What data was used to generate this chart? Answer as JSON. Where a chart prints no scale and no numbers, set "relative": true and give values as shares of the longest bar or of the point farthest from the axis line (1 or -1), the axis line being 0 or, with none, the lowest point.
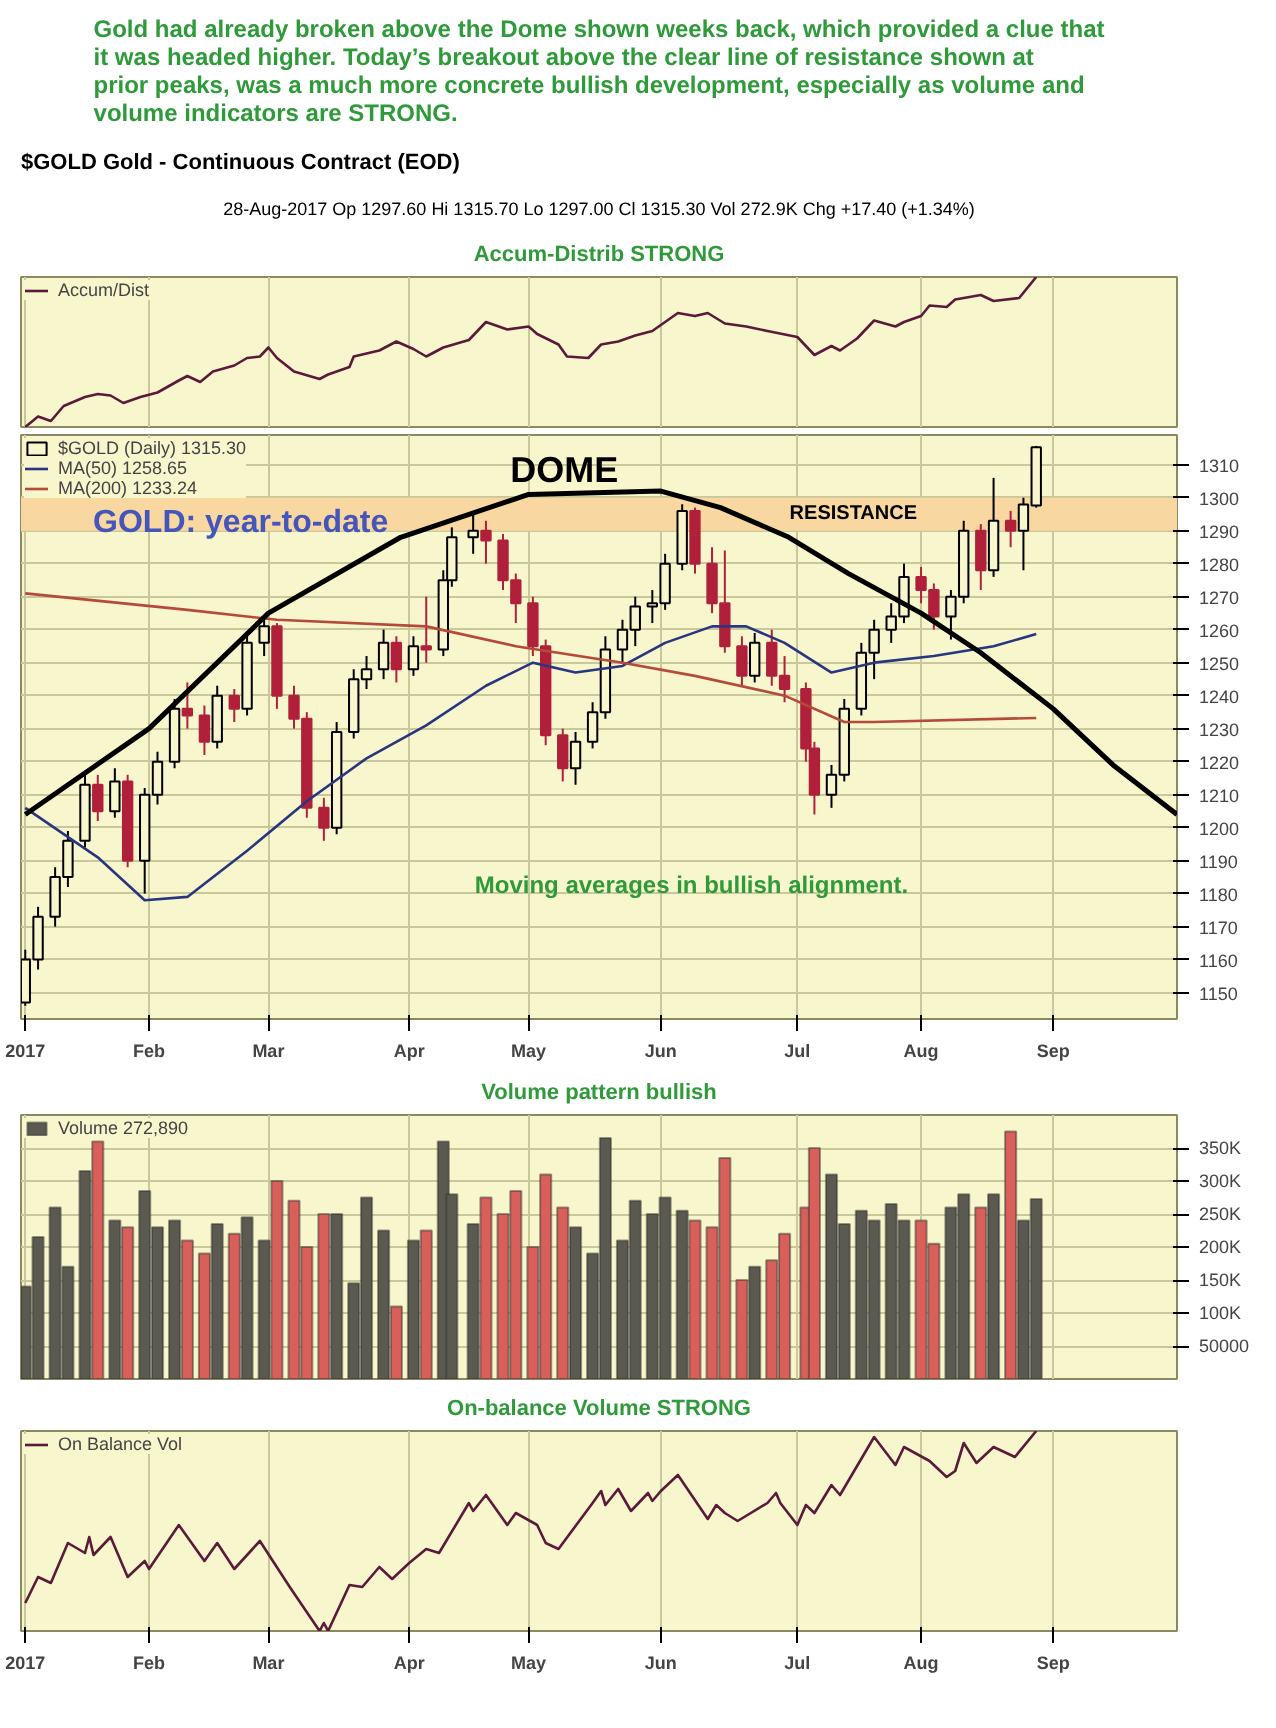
{
  "chart_data": [
    {
      "type": "line",
      "relative": true,
      "title": "Gold had already broken above the Dome shown weeks back, which provided a clue that it was headed higher. Today’s breakout above the clear line of resistance shown at prior peaks, was a much more concrete bullish development, especially as volume and volume indicators are STRONG.",
      "subtitle": "$GOLD Gold - Continuous Contract (EOD)",
      "annotations": [
        "28-Aug-2017 Op 1297.60 Hi 1315.70 Lo 1297.00 Cl 1315.30 Vol 272.9K Chg +17.40 (+1.34%)",
        "Accum-Distrib STRONG"
      ],
      "xlim": [
        "2017-01-02",
        "2017-09-30"
      ],
      "xticks": [
        {
          "value": "2017-01-03",
          "label": "2017"
        },
        {
          "value": "2017-02-01",
          "label": "Feb"
        },
        {
          "value": "2017-03-01",
          "label": "Mar"
        },
        {
          "value": "2017-04-03",
          "label": "Apr"
        },
        {
          "value": "2017-05-01",
          "label": "May"
        },
        {
          "value": "2017-06-01",
          "label": "Jun"
        },
        {
          "value": "2017-07-03",
          "label": "Jul"
        },
        {
          "value": "2017-08-01",
          "label": "Aug"
        },
        {
          "value": "2017-09-01",
          "label": "Sep"
        }
      ],
      "tick_labels": false,
      "grid": "x",
      "legend": "top left",
      "series": [
        {
          "name": "Accum/Dist",
          "color": "#5b1a3a",
          "x": [
            "2017-01-03",
            "2017-01-06",
            "2017-01-09",
            "2017-01-12",
            "2017-01-17",
            "2017-01-20",
            "2017-01-23",
            "2017-01-26",
            "2017-01-30",
            "2017-02-03",
            "2017-02-08",
            "2017-02-10",
            "2017-02-13",
            "2017-02-16",
            "2017-02-21",
            "2017-02-24",
            "2017-02-27",
            "2017-03-01",
            "2017-03-03",
            "2017-03-07",
            "2017-03-13",
            "2017-03-15",
            "2017-03-20",
            "2017-03-21",
            "2017-03-27",
            "2017-03-29",
            "2017-03-31",
            "2017-04-04",
            "2017-04-07",
            "2017-04-11",
            "2017-04-17",
            "2017-04-21",
            "2017-04-26",
            "2017-05-01",
            "2017-05-03",
            "2017-05-08",
            "2017-05-10",
            "2017-05-15",
            "2017-05-18",
            "2017-05-22",
            "2017-05-26",
            "2017-05-30",
            "2017-06-05",
            "2017-06-09",
            "2017-06-12",
            "2017-06-16",
            "2017-06-21",
            "2017-06-26",
            "2017-07-03",
            "2017-07-07",
            "2017-07-11",
            "2017-07-13",
            "2017-07-17",
            "2017-07-21",
            "2017-07-26",
            "2017-07-28",
            "2017-08-01",
            "2017-08-03",
            "2017-08-07",
            "2017-08-09",
            "2017-08-15",
            "2017-08-18",
            "2017-08-24",
            "2017-08-28"
          ],
          "values": [
            0,
            0.07,
            0.04,
            0.14,
            0.2,
            0.22,
            0.21,
            0.16,
            0.2,
            0.23,
            0.31,
            0.34,
            0.3,
            0.37,
            0.41,
            0.46,
            0.47,
            0.53,
            0.46,
            0.37,
            0.32,
            0.35,
            0.4,
            0.47,
            0.51,
            0.54,
            0.57,
            0.52,
            0.47,
            0.53,
            0.58,
            0.7,
            0.65,
            0.67,
            0.62,
            0.55,
            0.47,
            0.46,
            0.55,
            0.57,
            0.61,
            0.64,
            0.76,
            0.74,
            0.76,
            0.69,
            0.67,
            0.64,
            0.6,
            0.48,
            0.54,
            0.51,
            0.59,
            0.71,
            0.67,
            0.7,
            0.74,
            0.81,
            0.8,
            0.85,
            0.88,
            0.84,
            0.86,
            1
          ]
        }
      ]
    },
    {
      "type": "candlestick",
      "ylim": [
        1142,
        1319
      ],
      "yticks": [
        1150,
        1160,
        1170,
        1180,
        1190,
        1200,
        1210,
        1220,
        1230,
        1240,
        1250,
        1260,
        1270,
        1280,
        1290,
        1300,
        1310
      ],
      "xlim": [
        "2017-01-02",
        "2017-09-30"
      ],
      "xticks": [
        {
          "value": "2017-01-03",
          "label": "2017"
        },
        {
          "value": "2017-02-01",
          "label": "Feb"
        },
        {
          "value": "2017-03-01",
          "label": "Mar"
        },
        {
          "value": "2017-04-03",
          "label": "Apr"
        },
        {
          "value": "2017-05-01",
          "label": "May"
        },
        {
          "value": "2017-06-01",
          "label": "Jun"
        },
        {
          "value": "2017-07-03",
          "label": "Jul"
        },
        {
          "value": "2017-08-01",
          "label": "Aug"
        },
        {
          "value": "2017-09-01",
          "label": "Sep"
        }
      ],
      "grid": true,
      "legend": "top left",
      "annotations": [
        "DOME",
        "GOLD: year-to-date",
        "Moving averages in bullish alignment."
      ],
      "bands": [
        {
          "axis": "y",
          "from": 1290,
          "to": 1300,
          "label": "RESISTANCE",
          "color": "#f9d7a0"
        }
      ],
      "x": [
        "2017-01-03",
        "2017-01-06",
        "2017-01-10",
        "2017-01-13",
        "2017-01-17",
        "2017-01-20",
        "2017-01-24",
        "2017-01-27",
        "2017-01-31",
        "2017-02-03",
        "2017-02-07",
        "2017-02-10",
        "2017-02-14",
        "2017-02-17",
        "2017-02-21",
        "2017-02-24",
        "2017-02-28",
        "2017-03-03",
        "2017-03-07",
        "2017-03-10",
        "2017-03-14",
        "2017-03-17",
        "2017-03-21",
        "2017-03-24",
        "2017-03-28",
        "2017-03-31",
        "2017-04-04",
        "2017-04-07",
        "2017-04-11",
        "2017-04-13",
        "2017-04-18",
        "2017-04-21",
        "2017-04-25",
        "2017-04-28",
        "2017-05-02",
        "2017-05-05",
        "2017-05-09",
        "2017-05-12",
        "2017-05-16",
        "2017-05-19",
        "2017-05-23",
        "2017-05-26",
        "2017-05-30",
        "2017-06-02",
        "2017-06-06",
        "2017-06-09",
        "2017-06-13",
        "2017-06-16",
        "2017-06-20",
        "2017-06-23",
        "2017-06-27",
        "2017-06-30",
        "2017-07-05",
        "2017-07-07",
        "2017-07-11",
        "2017-07-14",
        "2017-07-18",
        "2017-07-21",
        "2017-07-25",
        "2017-07-28",
        "2017-08-01",
        "2017-08-04",
        "2017-08-08",
        "2017-08-11",
        "2017-08-15",
        "2017-08-18",
        "2017-08-22",
        "2017-08-25",
        "2017-08-28"
      ],
      "series": [
        {
          "name": "$GOLD (Daily) 1315.30",
          "ohlc": [
            [
              1147,
              1163,
              1146,
              1160
            ],
            [
              1160,
              1176,
              1157,
              1173
            ],
            [
              1173,
              1188,
              1170,
              1185
            ],
            [
              1185,
              1199,
              1182,
              1196
            ],
            [
              1196,
              1217,
              1194,
              1213
            ],
            [
              1213,
              1216,
              1202,
              1205
            ],
            [
              1205,
              1218,
              1203,
              1214
            ],
            [
              1214,
              1216,
              1188,
              1190
            ],
            [
              1190,
              1212,
              1180,
              1210
            ],
            [
              1210,
              1223,
              1207,
              1220
            ],
            [
              1220,
              1239,
              1218,
              1236
            ],
            [
              1236,
              1244,
              1230,
              1234
            ],
            [
              1234,
              1237,
              1222,
              1226
            ],
            [
              1226,
              1243,
              1224,
              1240
            ],
            [
              1240,
              1242,
              1232,
              1236
            ],
            [
              1236,
              1259,
              1234,
              1256
            ],
            [
              1256,
              1264,
              1252,
              1261
            ],
            [
              1261,
              1262,
              1236,
              1240
            ],
            [
              1240,
              1243,
              1230,
              1233
            ],
            [
              1233,
              1235,
              1203,
              1206
            ],
            [
              1206,
              1209,
              1196,
              1200
            ],
            [
              1200,
              1232,
              1198,
              1229
            ],
            [
              1229,
              1248,
              1227,
              1245
            ],
            [
              1245,
              1252,
              1242,
              1248
            ],
            [
              1248,
              1260,
              1245,
              1256
            ],
            [
              1256,
              1258,
              1244,
              1248
            ],
            [
              1248,
              1258,
              1246,
              1255
            ],
            [
              1255,
              1270,
              1250,
              1254
            ],
            [
              1254,
              1278,
              1252,
              1275
            ],
            [
              1275,
              1291,
              1273,
              1288
            ],
            [
              1288,
              1295,
              1283,
              1290
            ],
            [
              1290,
              1293,
              1280,
              1287
            ],
            [
              1287,
              1289,
              1272,
              1275
            ],
            [
              1275,
              1277,
              1262,
              1268
            ],
            [
              1268,
              1270,
              1252,
              1255
            ],
            [
              1255,
              1257,
              1225,
              1228
            ],
            [
              1228,
              1230,
              1214,
              1218
            ],
            [
              1218,
              1229,
              1213,
              1226
            ],
            [
              1226,
              1238,
              1224,
              1235
            ],
            [
              1235,
              1258,
              1233,
              1254
            ],
            [
              1254,
              1263,
              1250,
              1260
            ],
            [
              1260,
              1270,
              1255,
              1267
            ],
            [
              1267,
              1272,
              1262,
              1268
            ],
            [
              1268,
              1283,
              1266,
              1280
            ],
            [
              1280,
              1298,
              1278,
              1296
            ],
            [
              1296,
              1297,
              1277,
              1280
            ],
            [
              1280,
              1285,
              1265,
              1268
            ],
            [
              1268,
              1284,
              1253,
              1255
            ],
            [
              1255,
              1258,
              1243,
              1246
            ],
            [
              1246,
              1259,
              1244,
              1256
            ],
            [
              1256,
              1260,
              1243,
              1246
            ],
            [
              1246,
              1252,
              1238,
              1242
            ],
            [
              1242,
              1244,
              1220,
              1224
            ],
            [
              1224,
              1226,
              1204,
              1210
            ],
            [
              1210,
              1219,
              1206,
              1216
            ],
            [
              1216,
              1239,
              1214,
              1236
            ],
            [
              1236,
              1256,
              1234,
              1253
            ],
            [
              1253,
              1263,
              1245,
              1260
            ],
            [
              1260,
              1268,
              1256,
              1264
            ],
            [
              1264,
              1280,
              1262,
              1276
            ],
            [
              1276,
              1279,
              1268,
              1272
            ],
            [
              1272,
              1274,
              1260,
              1264
            ],
            [
              1264,
              1272,
              1257,
              1270
            ],
            [
              1270,
              1293,
              1268,
              1290
            ],
            [
              1290,
              1292,
              1272,
              1278
            ],
            [
              1278,
              1306,
              1276,
              1293
            ],
            [
              1293,
              1296,
              1285,
              1290
            ],
            [
              1290,
              1300,
              1278,
              1297.9
            ],
            [
              1297.6,
              1315.7,
              1297,
              1315.3
            ]
          ],
          "colors": [
            "#000000",
            "#000000",
            "#000000",
            "#000000",
            "#000000",
            "#b0203a",
            "#000000",
            "#b0203a",
            "#000000",
            "#000000",
            "#000000",
            "#b0203a",
            "#b0203a",
            "#000000",
            "#b0203a",
            "#000000",
            "#000000",
            "#b0203a",
            "#b0203a",
            "#b0203a",
            "#b0203a",
            "#000000",
            "#000000",
            "#000000",
            "#000000",
            "#b0203a",
            "#000000",
            "#b0203a",
            "#000000",
            "#000000",
            "#000000",
            "#b0203a",
            "#b0203a",
            "#b0203a",
            "#b0203a",
            "#b0203a",
            "#b0203a",
            "#000000",
            "#000000",
            "#000000",
            "#000000",
            "#000000",
            "#000000",
            "#000000",
            "#000000",
            "#b0203a",
            "#b0203a",
            "#b0203a",
            "#b0203a",
            "#000000",
            "#b0203a",
            "#b0203a",
            "#b0203a",
            "#b0203a",
            "#000000",
            "#000000",
            "#000000",
            "#000000",
            "#000000",
            "#000000",
            "#b0203a",
            "#b0203a",
            "#000000",
            "#000000",
            "#b0203a",
            "#000000",
            "#b0203a",
            "#000000",
            "#000000"
          ]
        },
        {
          "name": "MA(50) 1258.65",
          "type": "line",
          "color": "#2a3580",
          "x": [
            "2017-01-03",
            "2017-01-20",
            "2017-01-31",
            "2017-02-10",
            "2017-02-24",
            "2017-03-10",
            "2017-03-24",
            "2017-04-07",
            "2017-04-21",
            "2017-05-02",
            "2017-05-12",
            "2017-05-23",
            "2017-06-02",
            "2017-06-13",
            "2017-06-21",
            "2017-06-30",
            "2017-07-11",
            "2017-07-21",
            "2017-08-04",
            "2017-08-18",
            "2017-08-28"
          ],
          "values": [
            1206,
            1191,
            1178,
            1179,
            1193,
            1208,
            1221,
            1231,
            1243,
            1250,
            1247,
            1249,
            1256,
            1261,
            1261,
            1256,
            1247,
            1250,
            1252,
            1255,
            1258.65
          ]
        },
        {
          "name": "MA(200) 1233.24",
          "type": "line",
          "color": "#b5493a",
          "x": [
            "2017-01-03",
            "2017-02-10",
            "2017-03-03",
            "2017-04-07",
            "2017-04-28",
            "2017-05-23",
            "2017-06-09",
            "2017-06-30",
            "2017-07-14",
            "2017-07-21",
            "2017-08-28"
          ],
          "values": [
            1271,
            1266,
            1263,
            1261,
            1255,
            1250,
            1246,
            1240,
            1232,
            1232,
            1233.24
          ]
        },
        {
          "type": "line",
          "color": "#000000",
          "x": [
            "2017-01-03",
            "2017-02-01",
            "2017-03-01",
            "2017-04-01",
            "2017-05-01",
            "2017-06-01",
            "2017-06-15",
            "2017-07-01",
            "2017-07-15",
            "2017-08-01",
            "2017-08-15",
            "2017-09-01",
            "2017-09-15",
            "2017-09-30"
          ],
          "values": [
            1204,
            1230,
            1265,
            1288,
            1301,
            1302,
            1297,
            1288,
            1277,
            1265,
            1253,
            1236,
            1219,
            1204
          ]
        }
      ]
    },
    {
      "type": "bar",
      "ylim": [
        0,
        400000
      ],
      "yticks": [
        50000,
        {
          "value": 100000,
          "label": "100K"
        },
        {
          "value": 150000,
          "label": "150K"
        },
        {
          "value": 200000,
          "label": "200K"
        },
        {
          "value": 250000,
          "label": "250K"
        },
        {
          "value": 300000,
          "label": "300K"
        },
        {
          "value": 350000,
          "label": "350K"
        }
      ],
      "xlim": [
        "2017-01-02",
        "2017-09-30"
      ],
      "xticks": [
        {
          "value": "2017-01-03",
          "label": "2017"
        },
        {
          "value": "2017-02-01",
          "label": "Feb"
        },
        {
          "value": "2017-03-01",
          "label": "Mar"
        },
        {
          "value": "2017-04-03",
          "label": "Apr"
        },
        {
          "value": "2017-05-01",
          "label": "May"
        },
        {
          "value": "2017-06-01",
          "label": "Jun"
        },
        {
          "value": "2017-07-03",
          "label": "Jul"
        },
        {
          "value": "2017-08-01",
          "label": "Aug"
        },
        {
          "value": "2017-09-01",
          "label": "Sep"
        }
      ],
      "tick_labels": "y",
      "grid": true,
      "legend": "top left",
      "annotations": [
        "Volume pattern bullish"
      ],
      "x": [
        "2017-01-03",
        "2017-01-06",
        "2017-01-10",
        "2017-01-13",
        "2017-01-17",
        "2017-01-20",
        "2017-01-24",
        "2017-01-27",
        "2017-01-31",
        "2017-02-03",
        "2017-02-07",
        "2017-02-10",
        "2017-02-14",
        "2017-02-17",
        "2017-02-21",
        "2017-02-24",
        "2017-02-28",
        "2017-03-03",
        "2017-03-07",
        "2017-03-10",
        "2017-03-14",
        "2017-03-17",
        "2017-03-21",
        "2017-03-24",
        "2017-03-28",
        "2017-03-31",
        "2017-04-04",
        "2017-04-07",
        "2017-04-11",
        "2017-04-13",
        "2017-04-18",
        "2017-04-21",
        "2017-04-25",
        "2017-04-28",
        "2017-05-02",
        "2017-05-05",
        "2017-05-09",
        "2017-05-12",
        "2017-05-16",
        "2017-05-19",
        "2017-05-23",
        "2017-05-26",
        "2017-05-30",
        "2017-06-02",
        "2017-06-06",
        "2017-06-09",
        "2017-06-13",
        "2017-06-16",
        "2017-06-20",
        "2017-06-23",
        "2017-06-27",
        "2017-06-30",
        "2017-07-05",
        "2017-07-07",
        "2017-07-11",
        "2017-07-14",
        "2017-07-18",
        "2017-07-21",
        "2017-07-25",
        "2017-07-28",
        "2017-08-01",
        "2017-08-04",
        "2017-08-08",
        "2017-08-11",
        "2017-08-15",
        "2017-08-18",
        "2017-08-22",
        "2017-08-25",
        "2017-08-28"
      ],
      "series": [
        {
          "name": "Volume 272,890",
          "values": [
            140000,
            215000,
            260000,
            170000,
            315000,
            360000,
            240000,
            230000,
            285000,
            230000,
            240000,
            210000,
            190000,
            235000,
            220000,
            245000,
            210000,
            300000,
            270000,
            200000,
            250000,
            250000,
            145000,
            275000,
            225000,
            110000,
            210000,
            225000,
            360000,
            280000,
            235000,
            275000,
            250000,
            285000,
            200000,
            310000,
            260000,
            230000,
            190000,
            365000,
            210000,
            270000,
            250000,
            275000,
            255000,
            240000,
            230000,
            335000,
            150000,
            170000,
            180000,
            220000,
            260000,
            350000,
            310000,
            235000,
            255000,
            240000,
            265000,
            240000,
            240000,
            205000,
            260000,
            280000,
            260000,
            280000,
            375000,
            240000,
            272890
          ],
          "colors": [
            "#5a5a50",
            "#5a5a50",
            "#5a5a50",
            "#5a5a50",
            "#5a5a50",
            "#d9605a",
            "#5a5a50",
            "#d9605a",
            "#5a5a50",
            "#5a5a50",
            "#5a5a50",
            "#d9605a",
            "#d9605a",
            "#5a5a50",
            "#d9605a",
            "#5a5a50",
            "#5a5a50",
            "#d9605a",
            "#d9605a",
            "#d9605a",
            "#d9605a",
            "#5a5a50",
            "#5a5a50",
            "#5a5a50",
            "#5a5a50",
            "#d9605a",
            "#5a5a50",
            "#d9605a",
            "#5a5a50",
            "#5a5a50",
            "#5a5a50",
            "#d9605a",
            "#d9605a",
            "#d9605a",
            "#d9605a",
            "#d9605a",
            "#d9605a",
            "#5a5a50",
            "#5a5a50",
            "#5a5a50",
            "#5a5a50",
            "#5a5a50",
            "#5a5a50",
            "#5a5a50",
            "#5a5a50",
            "#d9605a",
            "#d9605a",
            "#d9605a",
            "#d9605a",
            "#5a5a50",
            "#d9605a",
            "#d9605a",
            "#d9605a",
            "#d9605a",
            "#5a5a50",
            "#5a5a50",
            "#5a5a50",
            "#5a5a50",
            "#5a5a50",
            "#5a5a50",
            "#d9605a",
            "#d9605a",
            "#5a5a50",
            "#5a5a50",
            "#d9605a",
            "#5a5a50",
            "#d9605a",
            "#5a5a50",
            "#5a5a50"
          ]
        }
      ]
    },
    {
      "type": "line",
      "relative": true,
      "xlim": [
        "2017-01-02",
        "2017-09-30"
      ],
      "xticks": [
        {
          "value": "2017-01-03",
          "label": "2017"
        },
        {
          "value": "2017-02-01",
          "label": "Feb"
        },
        {
          "value": "2017-03-01",
          "label": "Mar"
        },
        {
          "value": "2017-04-03",
          "label": "Apr"
        },
        {
          "value": "2017-05-01",
          "label": "May"
        },
        {
          "value": "2017-06-01",
          "label": "Jun"
        },
        {
          "value": "2017-07-03",
          "label": "Jul"
        },
        {
          "value": "2017-08-01",
          "label": "Aug"
        },
        {
          "value": "2017-09-01",
          "label": "Sep"
        }
      ],
      "tick_labels": "x",
      "grid": "x",
      "legend": "top left",
      "annotations": [
        "On-balance Volume STRONG"
      ],
      "series": [
        {
          "name": "On Balance Vol",
          "color": "#5b1a3a",
          "x": [
            "2017-01-03",
            "2017-01-06",
            "2017-01-09",
            "2017-01-13",
            "2017-01-17",
            "2017-01-18",
            "2017-01-19",
            "2017-01-23",
            "2017-01-27",
            "2017-01-31",
            "2017-02-01",
            "2017-02-08",
            "2017-02-14",
            "2017-02-17",
            "2017-02-21",
            "2017-02-27",
            "2017-03-06",
            "2017-03-13",
            "2017-03-14",
            "2017-03-15",
            "2017-03-20",
            "2017-03-23",
            "2017-03-27",
            "2017-03-30",
            "2017-04-03",
            "2017-04-07",
            "2017-04-10",
            "2017-04-17",
            "2017-04-18",
            "2017-04-21",
            "2017-04-26",
            "2017-04-28",
            "2017-05-03",
            "2017-05-05",
            "2017-05-08",
            "2017-05-16",
            "2017-05-18",
            "2017-05-19",
            "2017-05-22",
            "2017-05-25",
            "2017-05-29",
            "2017-05-30",
            "2017-06-01",
            "2017-06-05",
            "2017-06-12",
            "2017-06-14",
            "2017-06-16",
            "2017-06-19",
            "2017-06-26",
            "2017-06-28",
            "2017-06-29",
            "2017-07-03",
            "2017-07-05",
            "2017-07-07",
            "2017-07-11",
            "2017-07-13",
            "2017-07-21",
            "2017-07-26",
            "2017-07-28",
            "2017-08-03",
            "2017-08-07",
            "2017-08-09",
            "2017-08-11",
            "2017-08-14",
            "2017-08-18",
            "2017-08-23",
            "2017-08-28"
          ],
          "values": [
            0.14,
            0.27,
            0.24,
            0.44,
            0.39,
            0.47,
            0.38,
            0.47,
            0.27,
            0.35,
            0.31,
            0.53,
            0.35,
            0.44,
            0.31,
            0.45,
            0.22,
            0,
            0.04,
            0,
            0.23,
            0.22,
            0.32,
            0.26,
            0.34,
            0.41,
            0.39,
            0.64,
            0.6,
            0.68,
            0.53,
            0.59,
            0.53,
            0.44,
            0.41,
            0.64,
            0.7,
            0.63,
            0.71,
            0.6,
            0.69,
            0.65,
            0.7,
            0.78,
            0.56,
            0.63,
            0.59,
            0.55,
            0.64,
            0.69,
            0.64,
            0.53,
            0.63,
            0.59,
            0.73,
            0.68,
            0.97,
            0.83,
            0.92,
            0.85,
            0.77,
            0.8,
            0.94,
            0.84,
            0.92,
            0.87,
            1
          ]
        }
      ]
    }
  ]
}
